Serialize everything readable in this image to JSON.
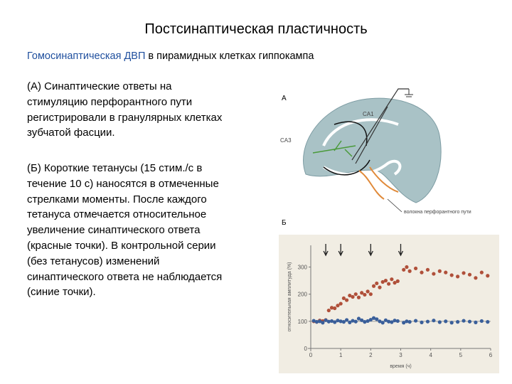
{
  "header": {
    "title": "Постсинаптическая пластичность"
  },
  "subtitle": {
    "highlight": "Гомосинаптическая ДВП",
    "rest": " в пирамидных клетках гиппокампа"
  },
  "paragraphs": [
    [
      "(А) Синаптические ответы на",
      "стимуляцию перфорантного пути",
      "регистрировали в гранулярных клетках",
      "зубчатой фасции."
    ],
    [
      "(Б) Короткие тетанусы (15 стим./с в",
      "течение 10 с) наносятся в отмеченные",
      "стрелками моменты. После каждого",
      "тетануса отмечается относительное",
      "увеличение синаптического ответа",
      "(красные точки). В контрольной серии",
      "(без тетанусов) изменений",
      "синаптического ответа не наблюдается",
      "(синие точки)."
    ]
  ],
  "figure": {
    "label_a": "А",
    "label_b": "Б",
    "diagram_labels": [
      "CA1",
      "CA3"
    ],
    "diagram_caption": "волокна перфорантного пути"
  },
  "chart_data": {
    "type": "scatter",
    "xlabel": "время (ч)",
    "ylabel": "относительная амплитуда (%)",
    "xlim": [
      0,
      6
    ],
    "ylim": [
      0,
      380
    ],
    "xticks": [
      0,
      1,
      2,
      3,
      4,
      5,
      6
    ],
    "yticks": [
      0,
      100,
      200,
      300
    ],
    "reference_line": 100,
    "tetanus_times": [
      0.5,
      1,
      2,
      3
    ],
    "series": [
      {
        "color": "#b0503a",
        "x": [
          0.1,
          0.2,
          0.3,
          0.4,
          0.5,
          0.6,
          0.7,
          0.8,
          0.9,
          1.0,
          1.1,
          1.2,
          1.3,
          1.4,
          1.5,
          1.6,
          1.7,
          1.8,
          1.9,
          2.0,
          2.1,
          2.2,
          2.3,
          2.4,
          2.5,
          2.6,
          2.7,
          2.8,
          2.9,
          3.1,
          3.2,
          3.3,
          3.5,
          3.7,
          3.9,
          4.1,
          4.3,
          4.5,
          4.7,
          4.9,
          5.1,
          5.3,
          5.5,
          5.7,
          5.9
        ],
        "values": [
          100,
          98,
          103,
          101,
          105,
          140,
          150,
          148,
          158,
          165,
          185,
          178,
          195,
          190,
          200,
          188,
          205,
          198,
          210,
          200,
          230,
          240,
          225,
          245,
          250,
          238,
          255,
          242,
          248,
          290,
          300,
          285,
          295,
          280,
          290,
          275,
          285,
          280,
          270,
          265,
          278,
          272,
          260,
          280,
          268
        ]
      },
      {
        "color": "#3a5f9a",
        "x": [
          0.1,
          0.2,
          0.3,
          0.4,
          0.5,
          0.6,
          0.7,
          0.8,
          0.9,
          1.0,
          1.1,
          1.2,
          1.3,
          1.4,
          1.5,
          1.6,
          1.7,
          1.8,
          1.9,
          2.0,
          2.1,
          2.2,
          2.3,
          2.4,
          2.5,
          2.6,
          2.7,
          2.8,
          2.9,
          3.1,
          3.2,
          3.3,
          3.5,
          3.7,
          3.9,
          4.1,
          4.3,
          4.5,
          4.7,
          4.9,
          5.1,
          5.3,
          5.5,
          5.7,
          5.9
        ],
        "values": [
          102,
          98,
          100,
          95,
          104,
          99,
          101,
          97,
          103,
          100,
          98,
          105,
          96,
          102,
          99,
          110,
          104,
          98,
          101,
          106,
          112,
          108,
          100,
          95,
          104,
          99,
          97,
          103,
          101,
          95,
          100,
          98,
          102,
          96,
          99,
          103,
          97,
          100,
          95,
          98,
          102,
          99,
          96,
          101,
          98
        ]
      }
    ]
  }
}
